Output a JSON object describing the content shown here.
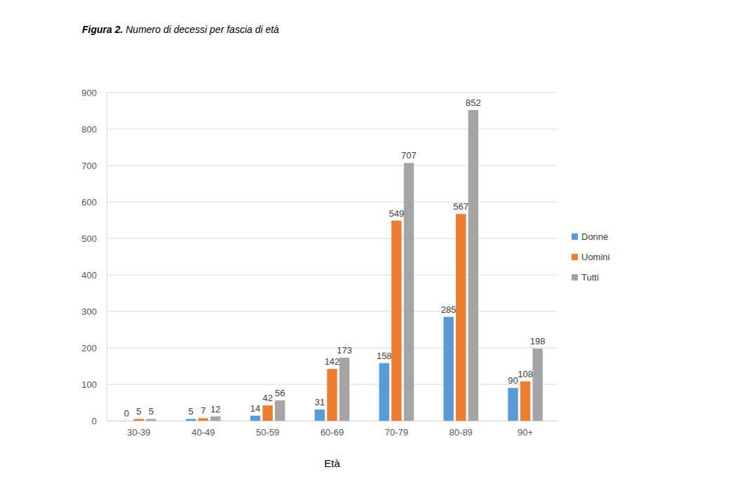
{
  "chart_data": {
    "type": "bar",
    "title": "Figura 2. Numero di decessi per fascia di età",
    "x_label": "Età",
    "categories": [
      "30-39",
      "40-49",
      "50-59",
      "60-69",
      "70-79",
      "80-89",
      "90+"
    ],
    "series": [
      {
        "name": "Donne",
        "color": "#5b9bd5",
        "values": [
          0,
          5,
          14,
          31,
          158,
          285,
          90
        ]
      },
      {
        "name": "Uomini",
        "color": "#ed7d31",
        "values": [
          5,
          7,
          42,
          142,
          549,
          567,
          108
        ]
      },
      {
        "name": "Tutti",
        "color": "#a5a5a5",
        "values": [
          5,
          12,
          56,
          173,
          707,
          852,
          198
        ]
      }
    ],
    "ylim": [
      0,
      900
    ],
    "yticks": [
      0,
      100,
      200,
      300,
      400,
      500,
      600,
      700,
      800,
      900
    ],
    "grid": true,
    "legend": "right",
    "data_labels": true
  }
}
